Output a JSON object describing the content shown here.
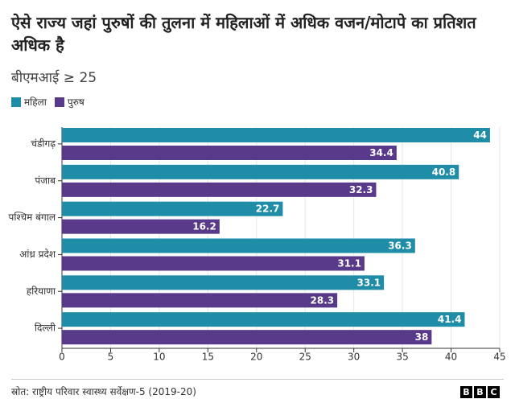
{
  "chart_data": {
    "type": "bar",
    "orientation": "horizontal",
    "title": "ऐसे राज्य जहां पुरुषों की तुलना में महिलाओं में अधिक वजन/मोटापे का प्रतिशत अधिक है",
    "subtitle": "बीएमआई ≥ 25",
    "categories": [
      "चंडीगढ़",
      "पंजाब",
      "पश्चिम बंगाल",
      "आंध्र प्रदेश",
      "हरियाणा",
      "दिल्ली"
    ],
    "series": [
      {
        "name": "महिला",
        "color": "#1f8ca8",
        "values": [
          44,
          40.8,
          22.7,
          36.3,
          33.1,
          41.4
        ]
      },
      {
        "name": "पुरुष",
        "color": "#58398a",
        "values": [
          34.4,
          32.3,
          16.2,
          31.1,
          28.3,
          38
        ]
      }
    ],
    "xlim": [
      0,
      45
    ],
    "xticks": [
      0,
      5,
      10,
      15,
      20,
      25,
      30,
      35,
      40,
      45
    ],
    "grid": true,
    "source": "स्रोत: राष्ट्रीय परिवार स्वास्थ्य सर्वेक्षण-5 (2019-20)",
    "logo": [
      "B",
      "B",
      "C"
    ]
  }
}
